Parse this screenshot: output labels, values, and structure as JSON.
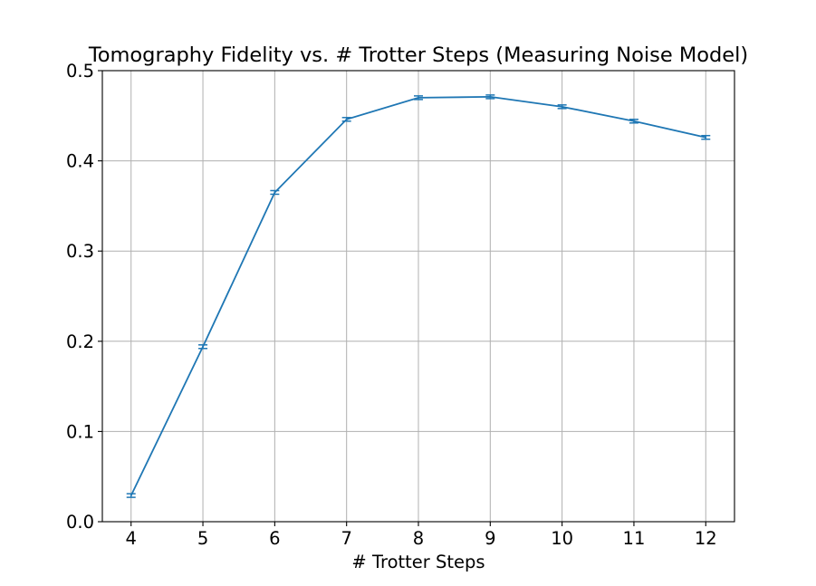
{
  "chart_data": {
    "type": "line",
    "title": "Tomography Fidelity vs. # Trotter Steps (Measuring Noise Model)",
    "xlabel": "# Trotter Steps",
    "ylabel": "",
    "xlim": [
      3.6,
      12.4
    ],
    "ylim": [
      0.0,
      0.5
    ],
    "xticks": [
      4,
      5,
      6,
      7,
      8,
      9,
      10,
      11,
      12
    ],
    "yticks": [
      0.0,
      0.1,
      0.2,
      0.3,
      0.4,
      0.5
    ],
    "ytick_labels": [
      "0.0",
      "0.1",
      "0.2",
      "0.3",
      "0.4",
      "0.5"
    ],
    "grid": true,
    "series": [
      {
        "x": [
          4,
          5,
          6,
          7,
          8,
          9,
          10,
          11,
          12
        ],
        "y": [
          0.029,
          0.194,
          0.365,
          0.446,
          0.47,
          0.471,
          0.46,
          0.444,
          0.426
        ],
        "yerr": [
          0.002,
          0.002,
          0.002,
          0.002,
          0.002,
          0.002,
          0.002,
          0.002,
          0.002
        ],
        "color": "#1f77b4"
      }
    ]
  }
}
